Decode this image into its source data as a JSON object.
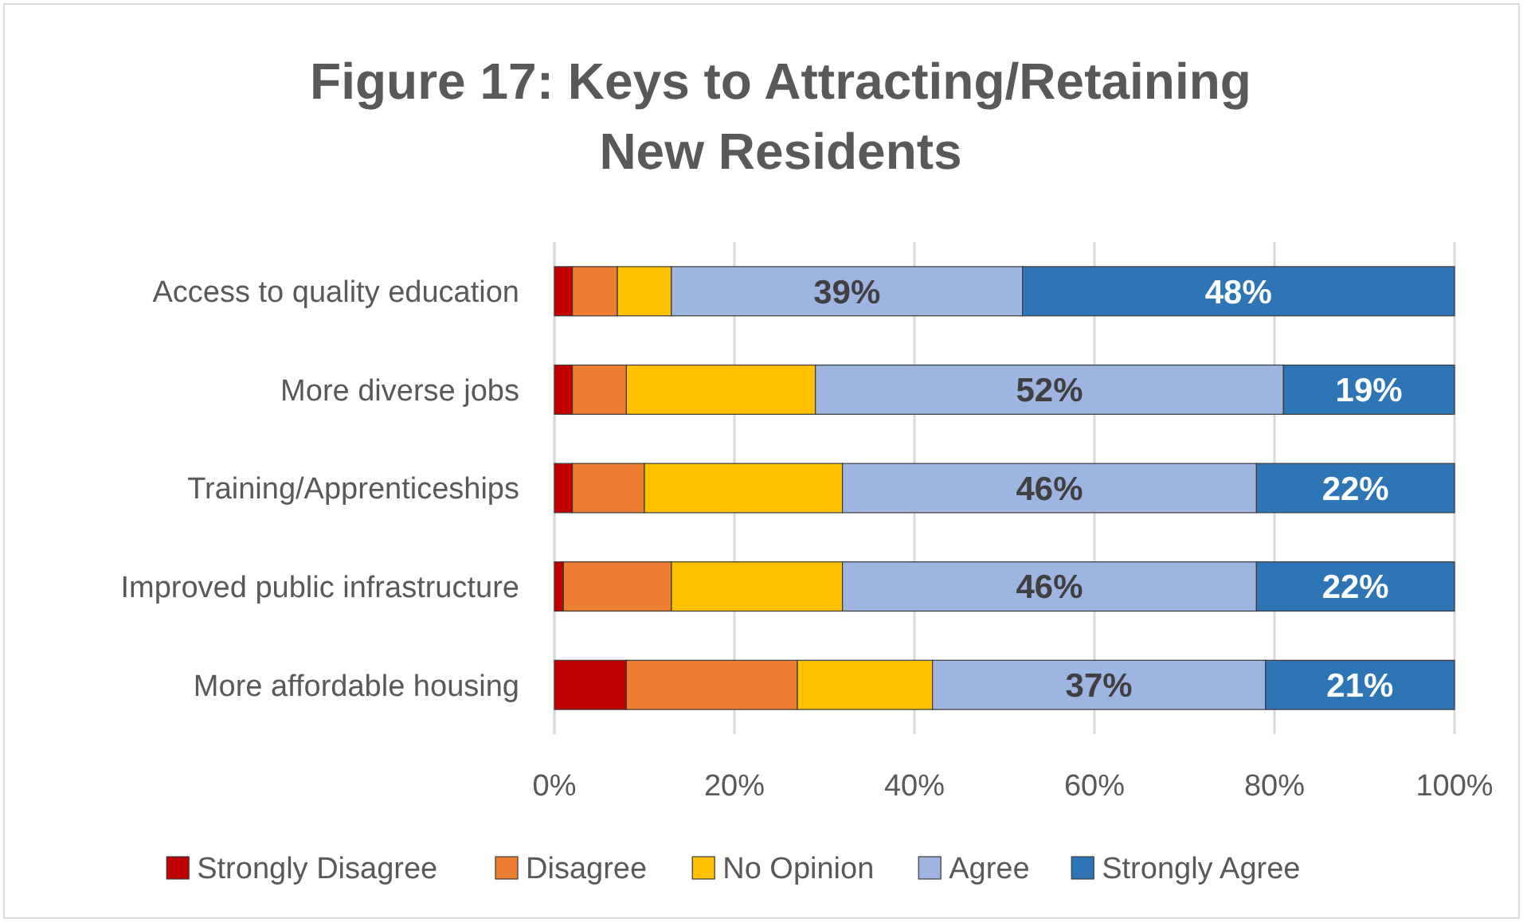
{
  "chart_data": {
    "type": "bar",
    "orientation": "horizontal",
    "stacked": true,
    "title": "Figure 17:  Keys to Attracting/Retaining New Residents",
    "categories": [
      "Access to quality education",
      "More diverse jobs",
      "Training/Apprenticeships",
      "Improved public infrastructure",
      "More affordable housing"
    ],
    "series": [
      {
        "name": "Strongly Disagree",
        "color": "#c00000",
        "values": [
          2,
          2,
          2,
          1,
          8
        ]
      },
      {
        "name": "Disagree",
        "color": "#ed7d31",
        "values": [
          5,
          6,
          8,
          12,
          19
        ]
      },
      {
        "name": "No Opinion",
        "color": "#ffc000",
        "values": [
          6,
          21,
          22,
          19,
          15
        ]
      },
      {
        "name": "Agree",
        "color": "#9db5e0",
        "values": [
          39,
          52,
          46,
          46,
          37
        ],
        "value_labels": [
          "39%",
          "52%",
          "46%",
          "46%",
          "37%"
        ]
      },
      {
        "name": "Strongly Agree",
        "color": "#2e75b6",
        "values": [
          48,
          19,
          22,
          22,
          21
        ],
        "value_labels": [
          "48%",
          "19%",
          "22%",
          "22%",
          "21%"
        ]
      }
    ],
    "xlim": [
      0,
      100
    ],
    "xticks": [
      {
        "value": 0,
        "label": "0%"
      },
      {
        "value": 20,
        "label": "20%"
      },
      {
        "value": 40,
        "label": "40%"
      },
      {
        "value": 60,
        "label": "60%"
      },
      {
        "value": 80,
        "label": "80%"
      },
      {
        "value": 100,
        "label": "100%"
      }
    ],
    "grid": "x",
    "legend": "bottom"
  }
}
